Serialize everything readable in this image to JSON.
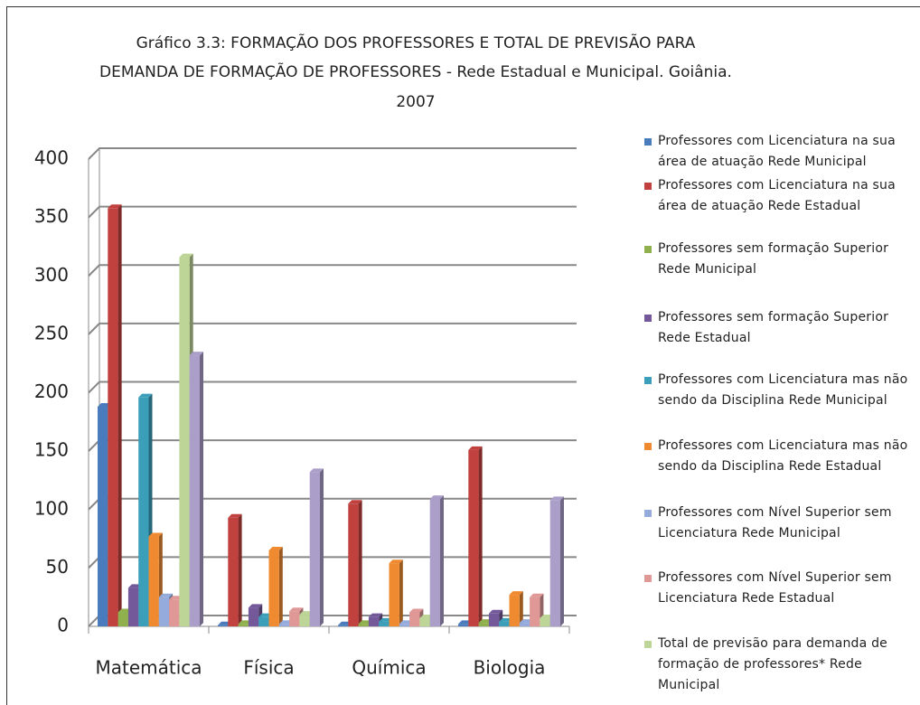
{
  "chart_data": {
    "type": "bar",
    "title": [
      "Gráfico 3.3: FORMAÇÃO DOS PROFESSORES E TOTAL DE PREVISÃO PARA",
      "DEMANDA DE FORMAÇÃO DE PROFESSORES - Rede Estadual e Municipal. Goiânia.",
      "2007"
    ],
    "categories": [
      "Matemática",
      "Física",
      "Química",
      "Biologia"
    ],
    "ylim": [
      0,
      400
    ],
    "yticks": [
      0,
      50,
      100,
      150,
      200,
      250,
      300,
      350,
      400
    ],
    "grid": true,
    "legend": "right",
    "series": [
      {
        "name": "Professores com Licenciatura na sua área de atuação Rede Municipal",
        "color": "#4a7bbd",
        "values": [
          188,
          1,
          1,
          2
        ]
      },
      {
        "name": "Professores com Licenciatura na sua área de atuação Rede Estadual",
        "color": "#c0413e",
        "values": [
          358,
          93,
          105,
          151
        ]
      },
      {
        "name": "Professores sem formação Superior Rede Municipal",
        "color": "#8fb04c",
        "values": [
          12,
          2,
          2,
          3
        ]
      },
      {
        "name": "Professores sem formação Superior Rede Estadual",
        "color": "#73589a",
        "values": [
          33,
          16,
          8,
          11
        ]
      },
      {
        "name": "Professores com Licenciatura mas não sendo da Disciplina Rede Municipal",
        "color": "#3b9fba",
        "values": [
          196,
          8,
          4,
          4
        ]
      },
      {
        "name": "Professores com Licenciatura mas não sendo da Disciplina Rede Estadual",
        "color": "#ef8a30",
        "values": [
          77,
          65,
          54,
          27
        ]
      },
      {
        "name": "Professores com Nível Superior sem Licenciatura Rede Municipal",
        "color": "#95abdc",
        "values": [
          25,
          2,
          2,
          3
        ]
      },
      {
        "name": "Professores com Nível Superior sem Licenciatura Rede Estadual",
        "color": "#df9896",
        "values": [
          23,
          13,
          12,
          25
        ]
      },
      {
        "name": "Total de previsão para demanda de formação de professores* Rede Municipal",
        "color": "#bdd597",
        "values": [
          316,
          10,
          7,
          7
        ]
      },
      {
        "name": null,
        "color": "#ab9fc9",
        "values": [
          232,
          132,
          109,
          108
        ]
      }
    ]
  }
}
